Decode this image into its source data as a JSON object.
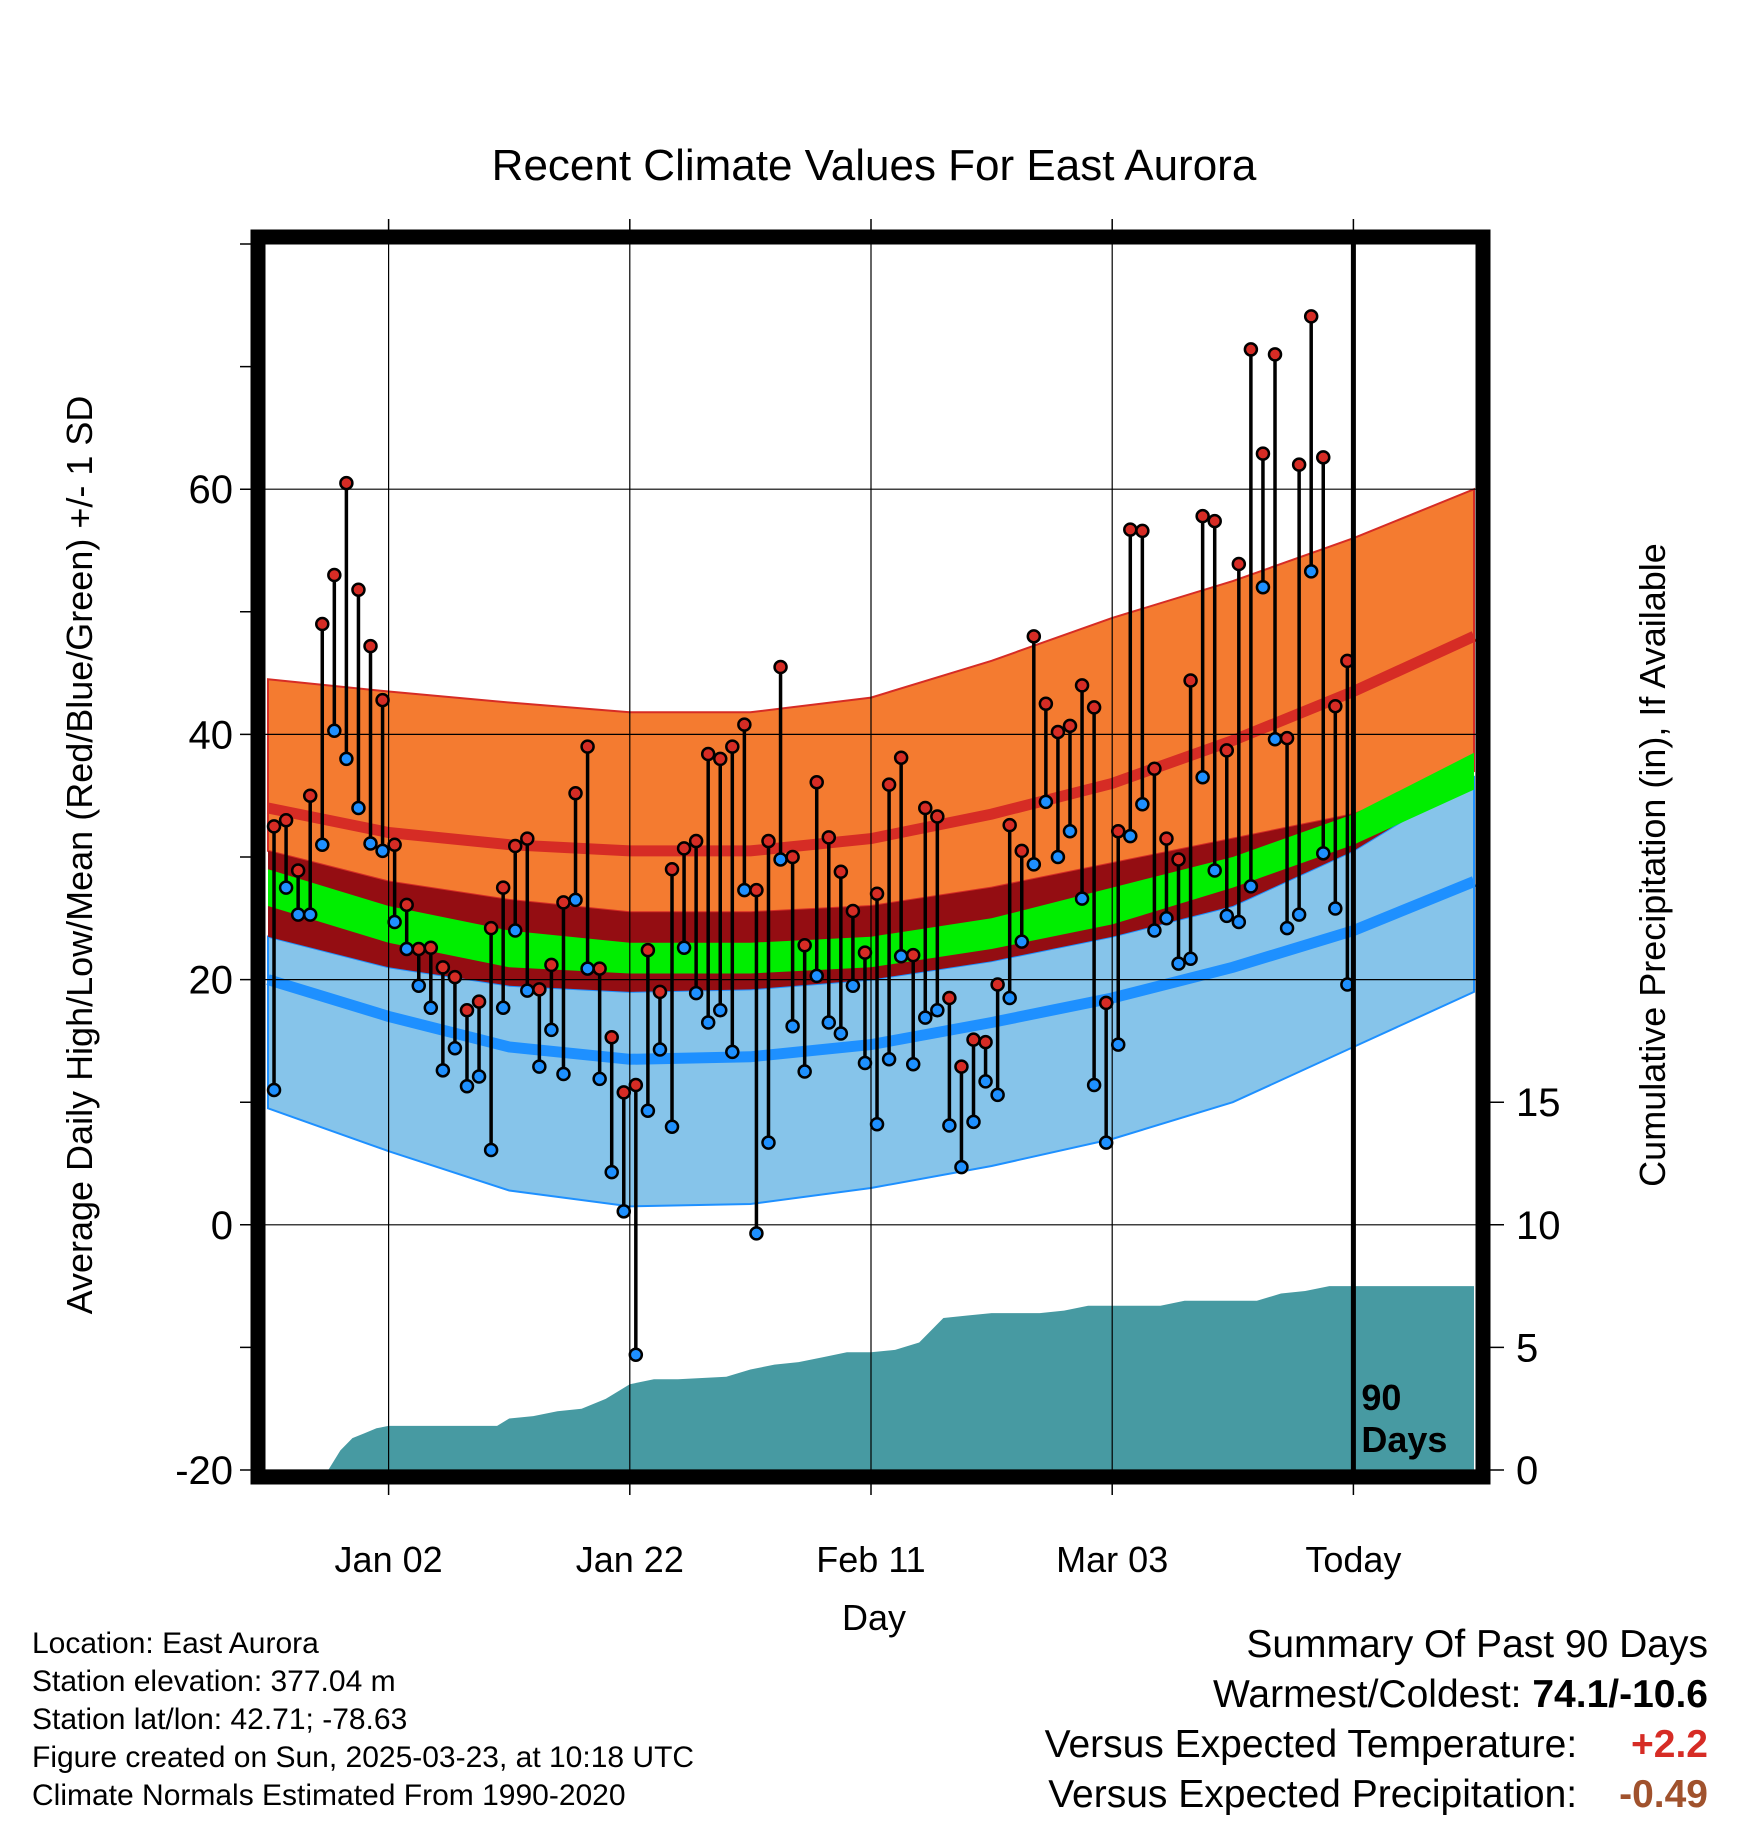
{
  "chart_data": {
    "type": "line",
    "title": "Recent Climate Values For East Aurora",
    "xlabel": "Day",
    "ylabel": "Average Daily High/Low/Mean (Red/Blue/Green) +/- 1 SD",
    "y2label": "Cumulative Precipitation (in), If Available",
    "ylim": [
      -20,
      80
    ],
    "y2lim": [
      0,
      50
    ],
    "yticks": [
      -20,
      0,
      20,
      40,
      60
    ],
    "y2ticks": [
      0,
      5,
      10,
      15
    ],
    "xticks": [
      {
        "day": 10,
        "label": "Jan 02"
      },
      {
        "day": 30,
        "label": "Jan 22"
      },
      {
        "day": 50,
        "label": "Feb 11"
      },
      {
        "day": 70,
        "label": "Mar 03"
      },
      {
        "day": 90,
        "label": "Today"
      }
    ],
    "xlim": [
      0,
      100
    ],
    "today_marker": {
      "day": 90,
      "label_line1": "90",
      "label_line2": "Days"
    },
    "normals": {
      "days": [
        0,
        10,
        20,
        30,
        40,
        50,
        60,
        70,
        80,
        90,
        100
      ],
      "high_upper": [
        44.5,
        43.5,
        42.6,
        41.8,
        41.8,
        43.0,
        46.0,
        49.5,
        52.5,
        56.0,
        60.0
      ],
      "high_mean": [
        34.0,
        32.0,
        31.0,
        30.5,
        30.5,
        31.5,
        33.5,
        36.0,
        39.5,
        43.5,
        48.0
      ],
      "high_lower": [
        30.5,
        28.0,
        26.5,
        25.5,
        25.5,
        26.0,
        27.5,
        29.5,
        31.5,
        33.5,
        37.0
      ],
      "mean_upper": [
        29.0,
        26.0,
        24.0,
        23.0,
        23.0,
        23.5,
        25.0,
        27.5,
        30.0,
        33.5,
        38.5
      ],
      "mean_mid": [
        27.5,
        24.5,
        22.5,
        21.8,
        21.8,
        22.3,
        23.8,
        26.0,
        28.8,
        32.2,
        37.0
      ],
      "mean_lower": [
        26.0,
        23.0,
        21.0,
        20.5,
        20.5,
        21.0,
        22.5,
        24.5,
        27.5,
        31.0,
        35.5
      ],
      "low_upper": [
        23.5,
        21.0,
        19.5,
        19.0,
        19.2,
        20.0,
        21.5,
        23.5,
        26.0,
        30.5,
        36.5
      ],
      "low_mean": [
        20.0,
        17.0,
        14.5,
        13.5,
        13.7,
        14.7,
        16.5,
        18.5,
        21.0,
        24.0,
        28.0
      ],
      "low_lower": [
        9.5,
        6.0,
        2.8,
        1.5,
        1.7,
        3.0,
        4.8,
        7.0,
        10.0,
        14.5,
        19.0
      ]
    },
    "observations": {
      "days": [
        0,
        1,
        2,
        3,
        4,
        5,
        6,
        7,
        8,
        9,
        10,
        11,
        12,
        13,
        14,
        15,
        16,
        17,
        18,
        19,
        20,
        21,
        22,
        23,
        24,
        25,
        26,
        27,
        28,
        29,
        30,
        31,
        32,
        33,
        34,
        35,
        36,
        37,
        38,
        39,
        40,
        41,
        42,
        43,
        44,
        45,
        46,
        47,
        48,
        49,
        50,
        51,
        52,
        53,
        54,
        55,
        56,
        57,
        58,
        59,
        60,
        61,
        62,
        63,
        64,
        65,
        66,
        67,
        68,
        69,
        70,
        71,
        72,
        73,
        74,
        75,
        76,
        77,
        78,
        79,
        80,
        81,
        82,
        83,
        84,
        85,
        86,
        87,
        88,
        89
      ],
      "high": [
        32.5,
        33.0,
        28.9,
        35.0,
        49.0,
        53.0,
        60.5,
        51.8,
        47.2,
        42.8,
        31.0,
        26.1,
        22.5,
        22.6,
        21.0,
        20.2,
        17.5,
        18.2,
        24.2,
        27.5,
        30.9,
        31.5,
        19.2,
        21.2,
        26.3,
        35.2,
        39.0,
        20.9,
        15.3,
        10.8,
        11.4,
        22.4,
        19.0,
        29.0,
        30.7,
        31.3,
        38.4,
        38.0,
        39.0,
        40.8,
        27.3,
        31.3,
        45.5,
        30.0,
        22.8,
        36.1,
        31.6,
        28.8,
        25.6,
        22.2,
        27.0,
        35.9,
        38.1,
        22.0,
        34.0,
        33.3,
        18.5,
        12.9,
        15.1,
        14.9,
        19.6,
        32.6,
        30.5,
        48.0,
        42.5,
        40.2,
        40.7,
        44.0,
        42.2,
        18.1,
        32.1,
        56.7,
        56.6,
        37.2,
        31.5,
        29.8,
        44.4,
        57.8,
        57.4,
        38.7,
        53.9,
        71.4,
        62.9,
        71.0,
        39.7,
        62.0,
        74.1,
        62.6,
        42.3,
        46.0
      ],
      "low": [
        11.0,
        27.5,
        25.3,
        25.3,
        31.0,
        40.3,
        38.0,
        34.0,
        31.1,
        30.5,
        24.7,
        22.5,
        19.5,
        17.7,
        12.6,
        14.4,
        11.3,
        12.1,
        6.1,
        17.7,
        24.0,
        19.1,
        12.9,
        15.9,
        12.3,
        26.5,
        20.9,
        11.9,
        4.3,
        1.1,
        -10.6,
        9.3,
        14.3,
        8.0,
        22.6,
        18.9,
        16.5,
        17.5,
        14.1,
        27.3,
        -0.7,
        6.7,
        29.8,
        16.2,
        12.5,
        20.3,
        16.5,
        15.6,
        19.5,
        13.2,
        8.2,
        13.5,
        21.9,
        13.1,
        16.9,
        17.5,
        8.1,
        4.7,
        8.4,
        11.7,
        10.6,
        18.5,
        23.1,
        29.4,
        34.5,
        30.0,
        32.1,
        26.6,
        11.4,
        6.7,
        14.7,
        31.7,
        34.3,
        24.0,
        25.0,
        21.3,
        21.7,
        36.5,
        28.9,
        25.2,
        24.7,
        27.6,
        52.0,
        39.6,
        24.2,
        25.3,
        53.3,
        30.3,
        25.8,
        19.6
      ]
    },
    "precip": {
      "days": [
        0,
        5,
        6,
        7,
        8,
        9,
        10,
        11,
        15,
        19,
        20,
        22,
        24,
        26,
        28,
        30,
        32,
        34,
        38,
        40,
        42,
        44,
        46,
        48,
        50,
        52,
        54,
        56,
        58,
        60,
        64,
        66,
        68,
        70,
        72,
        74,
        76,
        80,
        82,
        84,
        86,
        88,
        90,
        100
      ],
      "cum": [
        0,
        0,
        0.8,
        1.3,
        1.5,
        1.7,
        1.8,
        1.8,
        1.8,
        1.8,
        2.1,
        2.2,
        2.4,
        2.5,
        2.9,
        3.5,
        3.7,
        3.7,
        3.8,
        4.1,
        4.3,
        4.4,
        4.6,
        4.8,
        4.8,
        4.9,
        5.2,
        6.2,
        6.3,
        6.4,
        6.4,
        6.5,
        6.7,
        6.7,
        6.7,
        6.7,
        6.9,
        6.9,
        6.9,
        7.2,
        7.3,
        7.5,
        7.5,
        7.5
      ]
    },
    "colors": {
      "high_band": "#f47b30",
      "high_mean_line": "#d62c25",
      "mean_band": "#940d12",
      "mean_line": "#00ee00",
      "low_band": "#86c4ea",
      "low_line": "#1e90ff",
      "precip": "#479aa2",
      "high_marker": "#d62c25",
      "low_marker": "#1e90ff"
    }
  },
  "footer_left": [
    "Location: East Aurora",
    "Station elevation: 377.04 m",
    "Station lat/lon: 42.71; -78.63",
    "Figure created on Sun, 2025-03-23, at 10:18 UTC",
    "Climate Normals Estimated From 1990-2020"
  ],
  "summary": {
    "heading": "Summary Of Past 90 Days",
    "warm_cold_label": "Warmest/Coldest:",
    "warm_cold_value": "74.1/-10.6",
    "temp_label": "Versus Expected Temperature:",
    "temp_value": "+2.2",
    "temp_color": "#d62c25",
    "precip_label": "Versus Expected Precipitation:",
    "precip_value": "-0.49",
    "precip_color": "#a0522d"
  }
}
